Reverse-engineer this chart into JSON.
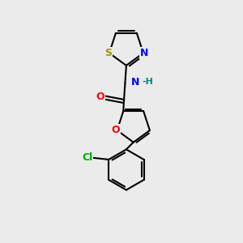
{
  "bg_color": "#ebebeb",
  "bond_color": "#000000",
  "bond_width": 1.5,
  "atom_colors": {
    "N": "#0000ff",
    "O": "#ff0000",
    "S": "#999900",
    "Cl": "#00aa00",
    "H": "#008888",
    "C": "#000000"
  },
  "figsize": [
    3.0,
    3.0
  ],
  "dpi": 100
}
